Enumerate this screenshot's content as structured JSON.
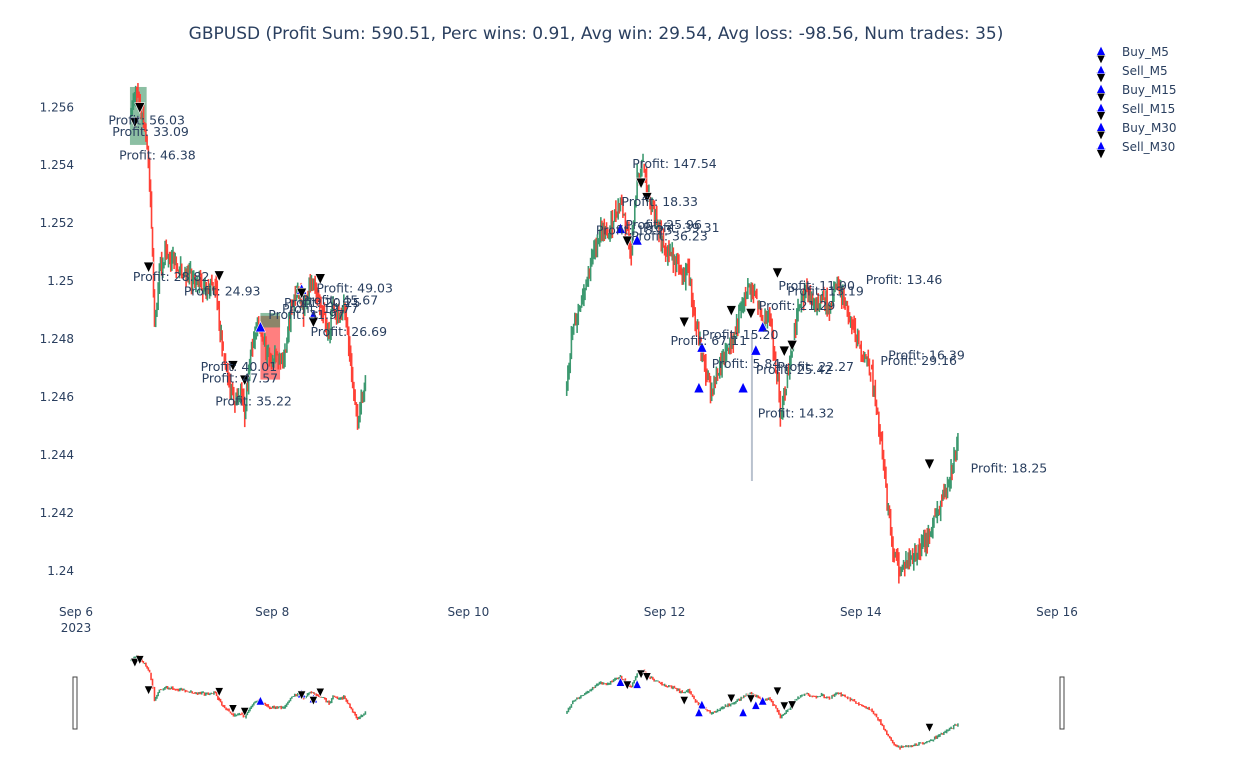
{
  "chart_data": {
    "type": "candlestick",
    "title": "GBPUSD (Profit Sum: 590.51, Perc wins: 0.91, Avg win: 29.54, Avg loss: -98.56, Num trades: 35)",
    "xlabel": "",
    "ylabel": "",
    "x_ticks": [
      "Sep 6\n2023",
      "Sep 8",
      "Sep 10",
      "Sep 12",
      "Sep 14",
      "Sep 16"
    ],
    "x_tick_days": [
      6,
      8,
      10,
      12,
      14,
      16
    ],
    "x_range_days": [
      6,
      16
    ],
    "y_ticks": [
      "1.24",
      "1.242",
      "1.244",
      "1.246",
      "1.248",
      "1.25",
      "1.252",
      "1.254",
      "1.256"
    ],
    "ylim": [
      1.2392,
      1.2577
    ],
    "colors": {
      "up": "#3d9970",
      "down": "#ff4136",
      "buy": "#0000ff",
      "sell": "#000000",
      "text": "#2a3f5f"
    },
    "price_path": [
      [
        6.55,
        1.2558
      ],
      [
        6.62,
        1.2566
      ],
      [
        6.7,
        1.2552
      ],
      [
        6.75,
        1.2535
      ],
      [
        6.78,
        1.251
      ],
      [
        6.8,
        1.2485
      ],
      [
        6.85,
        1.2505
      ],
      [
        6.92,
        1.251
      ],
      [
        7.0,
        1.2506
      ],
      [
        7.1,
        1.2504
      ],
      [
        7.2,
        1.25
      ],
      [
        7.35,
        1.2497
      ],
      [
        7.42,
        1.2499
      ],
      [
        7.46,
        1.2486
      ],
      [
        7.5,
        1.2475
      ],
      [
        7.56,
        1.2465
      ],
      [
        7.62,
        1.2458
      ],
      [
        7.68,
        1.2462
      ],
      [
        7.72,
        1.2455
      ],
      [
        7.76,
        1.2468
      ],
      [
        7.8,
        1.2478
      ],
      [
        7.85,
        1.2486
      ],
      [
        7.9,
        1.248
      ],
      [
        7.96,
        1.2474
      ],
      [
        8.05,
        1.2472
      ],
      [
        8.12,
        1.2473
      ],
      [
        8.16,
        1.2482
      ],
      [
        8.2,
        1.2492
      ],
      [
        8.26,
        1.2497
      ],
      [
        8.32,
        1.249
      ],
      [
        8.4,
        1.25
      ],
      [
        8.45,
        1.2495
      ],
      [
        8.52,
        1.249
      ],
      [
        8.58,
        1.248
      ],
      [
        8.62,
        1.2493
      ],
      [
        8.68,
        1.2488
      ],
      [
        8.73,
        1.2492
      ],
      [
        8.78,
        1.2478
      ],
      [
        8.82,
        1.2465
      ],
      [
        8.87,
        1.2452
      ],
      [
        8.92,
        1.246
      ],
      [
        8.95,
        1.2463
      ]
    ],
    "price_path_2": [
      [
        10.99,
        1.2463
      ],
      [
        11.05,
        1.248
      ],
      [
        11.12,
        1.249
      ],
      [
        11.2,
        1.25
      ],
      [
        11.28,
        1.251
      ],
      [
        11.35,
        1.2518
      ],
      [
        11.42,
        1.2515
      ],
      [
        11.48,
        1.2522
      ],
      [
        11.55,
        1.2528
      ],
      [
        11.6,
        1.252
      ],
      [
        11.66,
        1.251
      ],
      [
        11.72,
        1.2535
      ],
      [
        11.78,
        1.254
      ],
      [
        11.84,
        1.2528
      ],
      [
        11.92,
        1.252
      ],
      [
        12.0,
        1.2512
      ],
      [
        12.1,
        1.2508
      ],
      [
        12.18,
        1.25
      ],
      [
        12.24,
        1.2505
      ],
      [
        12.3,
        1.2488
      ],
      [
        12.36,
        1.2478
      ],
      [
        12.42,
        1.2468
      ],
      [
        12.48,
        1.2462
      ],
      [
        12.54,
        1.2468
      ],
      [
        12.62,
        1.2475
      ],
      [
        12.7,
        1.248
      ],
      [
        12.78,
        1.249
      ],
      [
        12.86,
        1.2498
      ],
      [
        12.94,
        1.2493
      ],
      [
        13.0,
        1.2485
      ],
      [
        13.06,
        1.249
      ],
      [
        13.12,
        1.2475
      ],
      [
        13.18,
        1.2455
      ],
      [
        13.24,
        1.2465
      ],
      [
        13.3,
        1.2478
      ],
      [
        13.36,
        1.249
      ],
      [
        13.44,
        1.2498
      ],
      [
        13.52,
        1.2492
      ],
      [
        13.6,
        1.2495
      ],
      [
        13.68,
        1.249
      ],
      [
        13.76,
        1.25
      ],
      [
        13.84,
        1.2492
      ],
      [
        13.92,
        1.2486
      ],
      [
        13.98,
        1.2478
      ],
      [
        14.04,
        1.2474
      ],
      [
        14.1,
        1.247
      ],
      [
        14.16,
        1.2455
      ],
      [
        14.22,
        1.244
      ],
      [
        14.28,
        1.242
      ],
      [
        14.34,
        1.2405
      ],
      [
        14.4,
        1.24
      ],
      [
        14.46,
        1.2403
      ],
      [
        14.54,
        1.2405
      ],
      [
        14.62,
        1.2408
      ],
      [
        14.7,
        1.2412
      ],
      [
        14.78,
        1.242
      ],
      [
        14.86,
        1.2428
      ],
      [
        14.92,
        1.2435
      ],
      [
        14.96,
        1.244
      ],
      [
        14.99,
        1.2442
      ]
    ],
    "shaded_regions": [
      {
        "x0": 6.55,
        "x1": 6.72,
        "y0": 1.2547,
        "y1": 1.2567,
        "kind": "win"
      },
      {
        "x0": 7.88,
        "x1": 8.08,
        "y0": 1.2466,
        "y1": 1.2488,
        "kind": "loss"
      },
      {
        "x0": 7.88,
        "x1": 8.08,
        "y0": 1.2484,
        "y1": 1.2489,
        "kind": "win"
      },
      {
        "x0": 12.88,
        "x1": 12.9,
        "y0": 1.2431,
        "y1": 1.2482,
        "kind": "neutral"
      }
    ],
    "buy_markers": [
      [
        11.55,
        1.2518
      ],
      [
        11.72,
        1.2514
      ],
      [
        12.38,
        1.2477
      ],
      [
        12.35,
        1.2463
      ],
      [
        12.8,
        1.2463
      ],
      [
        12.93,
        1.2476
      ],
      [
        13.0,
        1.2484
      ],
      [
        7.88,
        1.2484
      ],
      [
        8.3,
        1.2497
      ],
      [
        8.42,
        1.2488
      ]
    ],
    "sell_markers": [
      [
        6.6,
        1.2555
      ],
      [
        6.65,
        1.256
      ],
      [
        6.74,
        1.2505
      ],
      [
        7.46,
        1.2502
      ],
      [
        7.6,
        1.2471
      ],
      [
        7.72,
        1.2466
      ],
      [
        8.3,
        1.2496
      ],
      [
        8.42,
        1.2486
      ],
      [
        8.49,
        1.2501
      ],
      [
        11.76,
        1.2534
      ],
      [
        11.82,
        1.2529
      ],
      [
        11.62,
        1.2514
      ],
      [
        12.2,
        1.2486
      ],
      [
        12.68,
        1.249
      ],
      [
        12.88,
        1.2489
      ],
      [
        13.15,
        1.2503
      ],
      [
        13.22,
        1.2476
      ],
      [
        13.3,
        1.2478
      ],
      [
        14.7,
        1.2437
      ]
    ],
    "annotations": [
      {
        "text": "Profit: 56.03",
        "x": 6.33,
        "y": 1.2554
      },
      {
        "text": "Profit: 33.09",
        "x": 6.37,
        "y": 1.255
      },
      {
        "text": "Profit: 46.38",
        "x": 6.44,
        "y": 1.2542
      },
      {
        "text": "Profit: 28.82",
        "x": 6.58,
        "y": 1.25
      },
      {
        "text": "Profit: 24.93",
        "x": 7.1,
        "y": 1.2495
      },
      {
        "text": "Profit: 40.01",
        "x": 7.27,
        "y": 1.2469
      },
      {
        "text": "Profit: 47.57",
        "x": 7.28,
        "y": 1.2465
      },
      {
        "text": "Profit: 35.22",
        "x": 7.42,
        "y": 1.2457
      },
      {
        "text": "Profit: 31.97",
        "x": 7.96,
        "y": 1.2487
      },
      {
        "text": "Profit: 20.25",
        "x": 8.12,
        "y": 1.2491
      },
      {
        "text": "Profit: 19.77",
        "x": 8.1,
        "y": 1.2489
      },
      {
        "text": "Profit: 45.67",
        "x": 8.3,
        "y": 1.2492
      },
      {
        "text": "Profit: 49.03",
        "x": 8.45,
        "y": 1.2496
      },
      {
        "text": "Profit: 26.69",
        "x": 8.39,
        "y": 1.2481
      },
      {
        "text": "Profit: 147.54",
        "x": 11.67,
        "y": 1.2539
      },
      {
        "text": "Profit: 18.33",
        "x": 11.56,
        "y": 1.2526
      },
      {
        "text": "Profit: 25.96",
        "x": 11.6,
        "y": 1.2518
      },
      {
        "text": "Profit: 39.31",
        "x": 11.78,
        "y": 1.2517
      },
      {
        "text": "Profit: 18.23",
        "x": 11.3,
        "y": 1.2516
      },
      {
        "text": "Profit: 36.23",
        "x": 11.66,
        "y": 1.2514
      },
      {
        "text": "Profit: 15.20",
        "x": 12.38,
        "y": 1.248
      },
      {
        "text": "Profit: 67.11",
        "x": 12.06,
        "y": 1.2478
      },
      {
        "text": "Profit: 5.84",
        "x": 12.48,
        "y": 1.247
      },
      {
        "text": "Profit: 14.32",
        "x": 12.95,
        "y": 1.2453
      },
      {
        "text": "Profit: 22.27",
        "x": 13.15,
        "y": 1.2469
      },
      {
        "text": "Profit: 25.42",
        "x": 12.93,
        "y": 1.2468
      },
      {
        "text": "Profit: 21.29",
        "x": 12.96,
        "y": 1.249
      },
      {
        "text": "Profit: 13.19",
        "x": 13.25,
        "y": 1.2495
      },
      {
        "text": "Profit: 11.90",
        "x": 13.16,
        "y": 1.2497
      },
      {
        "text": "Profit: 13.46",
        "x": 14.05,
        "y": 1.2499
      },
      {
        "text": "Profit: 16.39",
        "x": 14.28,
        "y": 1.2473
      },
      {
        "text": "Profit: 29.16",
        "x": 14.2,
        "y": 1.2471
      },
      {
        "text": "Profit: 18.25",
        "x": 15.12,
        "y": 1.2434
      }
    ],
    "legend": {
      "placement": "top-right",
      "entries": [
        "Buy_M5",
        "Sell_M5",
        "Buy_M15",
        "Sell_M15",
        "Buy_M30",
        "Sell_M30"
      ]
    },
    "grid": false,
    "rangeslider": true
  }
}
